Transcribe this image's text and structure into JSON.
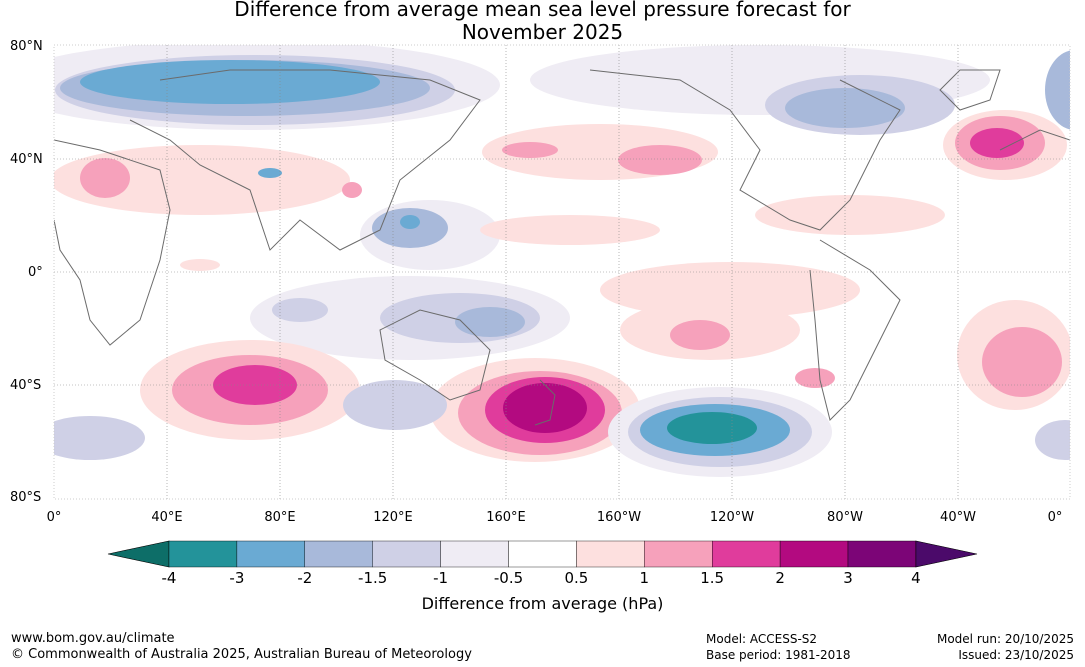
{
  "title_line1": "Difference from average mean sea level pressure forecast for",
  "title_line2": "November 2025",
  "lat_labels": [
    "80°N",
    "40°N",
    "0°",
    "40°S",
    "80°S"
  ],
  "lon_labels": [
    "0°",
    "40°E",
    "80°E",
    "120°E",
    "160°E",
    "160°W",
    "120°W",
    "80°W",
    "40°W",
    "0°"
  ],
  "colorbar": {
    "ticks": [
      "-4",
      "-3",
      "-2",
      "-1.5",
      "-1",
      "-0.5",
      "0.5",
      "1",
      "1.5",
      "2",
      "3",
      "4"
    ],
    "colors": [
      "#0d6e68",
      "#23939a",
      "#6aaad3",
      "#a8b9da",
      "#cfd0e6",
      "#efecf4",
      "#ffffff",
      "#fde0df",
      "#f6a1bb",
      "#e03c9c",
      "#b30a80",
      "#7c0577",
      "#4b0a6a"
    ],
    "title": "Difference from average (hPa)"
  },
  "footer": {
    "url": "www.bom.gov.au/climate",
    "copyright": "© Commonwealth of Australia 2025, Australian Bureau of Meteorology",
    "model": "Model: ACCESS-S2",
    "base_period": "Base period: 1981-2018",
    "model_run": "Model run: 20/10/2025",
    "issued": "Issued: 23/10/2025"
  }
}
